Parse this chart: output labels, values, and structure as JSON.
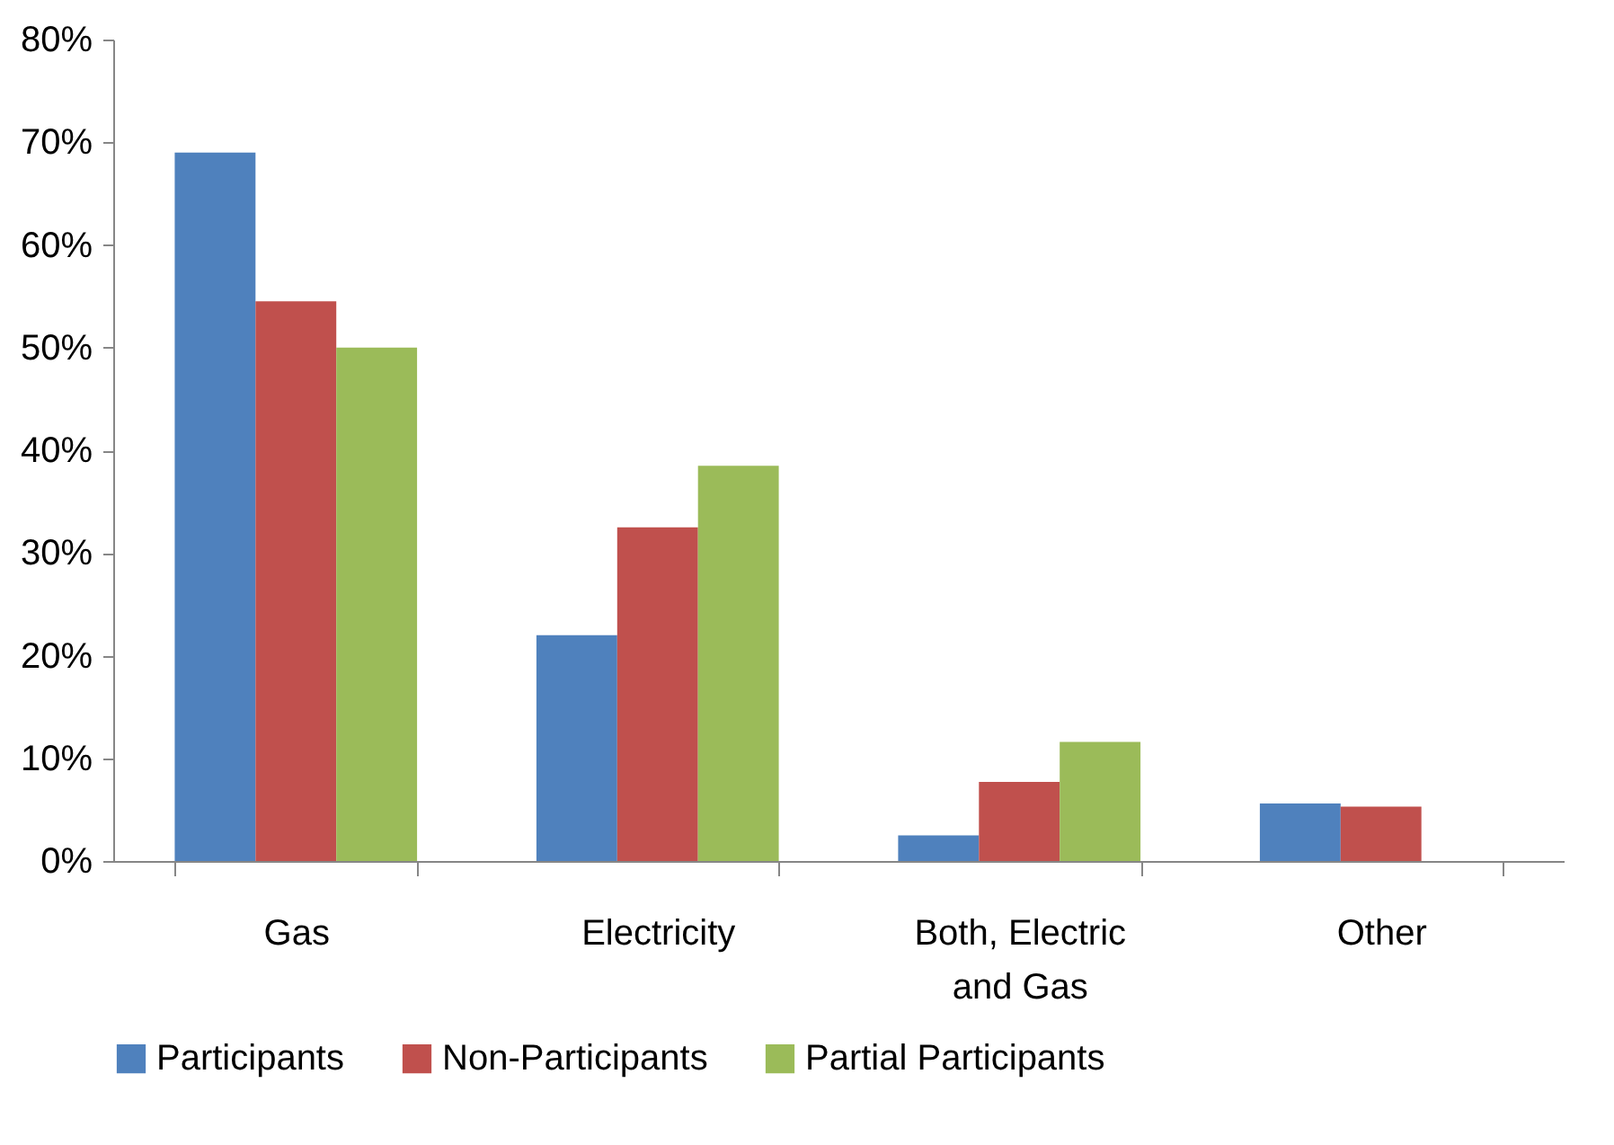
{
  "chart_data": {
    "type": "bar",
    "categories": [
      "Gas",
      "Electricity",
      "Both, Electric and Gas",
      "Other"
    ],
    "series": [
      {
        "name": "Participants",
        "color": "#4f81bd",
        "values": [
          69,
          22,
          2.5,
          5.6
        ]
      },
      {
        "name": "Non-Participants",
        "color": "#c0504d",
        "values": [
          54.5,
          32.5,
          7.7,
          5.3
        ]
      },
      {
        "name": "Partial Participants",
        "color": "#9bbb59",
        "values": [
          50,
          38.5,
          11.6,
          0
        ]
      }
    ],
    "ylim": [
      0,
      80
    ],
    "yticks": [
      {
        "value": 0,
        "label": "0%"
      },
      {
        "value": 10,
        "label": "10%"
      },
      {
        "value": 20,
        "label": "20%"
      },
      {
        "value": 30,
        "label": "30%"
      },
      {
        "value": 40,
        "label": "40%"
      },
      {
        "value": 50,
        "label": "50%"
      },
      {
        "value": 60,
        "label": "60%"
      },
      {
        "value": 70,
        "label": "70%"
      },
      {
        "value": 80,
        "label": "80%"
      }
    ],
    "grid": false,
    "legend": "bottom"
  }
}
